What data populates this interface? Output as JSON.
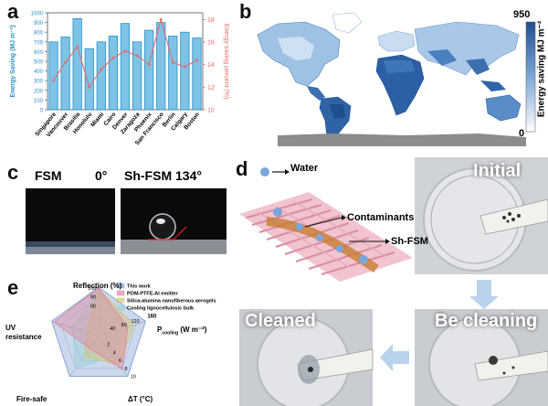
{
  "letters": {
    "a": "a",
    "b": "b",
    "c": "c",
    "d": "d",
    "e": "e"
  },
  "panel_a": {
    "chart_data": {
      "type": "bar",
      "categories": [
        "Singapore",
        "Vancouver",
        "Brasilia",
        "Honolulu",
        "Miami",
        "Cairo",
        "Denver",
        "Zaragoza",
        "Phoenix",
        "San Francisco",
        "Berlin",
        "Calgary",
        "Boston"
      ],
      "series": [
        {
          "values": [
            700,
            750,
            940,
            630,
            700,
            760,
            890,
            700,
            820,
            900,
            760,
            800,
            740
          ]
        },
        {
          "values": [
            12.6,
            14.2,
            15.6,
            12.0,
            13.6,
            14.6,
            15.2,
            14.8,
            14.0,
            18.0,
            14.2,
            13.8,
            14.4
          ]
        }
      ],
      "ylabel": "Energy Saving (MJ m⁻²)",
      "y2label": "Energy saving percent (%)",
      "ylim": [
        0,
        1000
      ],
      "y2lim": [
        10,
        18.6
      ],
      "yticks": [
        "0",
        "100",
        "200",
        "300",
        "400",
        "500",
        "600",
        "700",
        "800",
        "900",
        "1000"
      ],
      "y2ticks": [
        "10",
        "12",
        "14",
        "16",
        "18"
      ],
      "colors": {
        "bar": "#7ec3e6",
        "bar_edge": "#2a8fc4",
        "line": "#e86a6a",
        "left_axis": "#2a8fc4",
        "right_axis": "#e86a6a"
      }
    }
  },
  "panel_b": {
    "legend_max": "950",
    "legend_min": "0",
    "legend_label": "Energy saving MJ m⁻²",
    "colors": {
      "high": "#1e4f8f",
      "low": "#ffffff",
      "ocean": "#ffffff",
      "antarctica": "#8c8c8c"
    }
  },
  "panel_c": {
    "label_fsm": "FSM",
    "angle_fsm": "0°",
    "label_shfsm": "Sh-FSM 134°"
  },
  "panel_d": {
    "legend_water": "Water",
    "label_contaminants": "Contaminants",
    "label_shfsm": "Sh-FSM",
    "photo_initial": "Initial",
    "photo_be_cleaning": "Be cleaning",
    "photo_cleaned": "Cleaned"
  },
  "panel_e": {
    "chart_data": {
      "type": "radar",
      "axes": [
        "Reflection (%)",
        "P_cooling (W m⁻²)",
        "ΔT (°C)",
        "Fire-safe",
        "UV resistance"
      ],
      "axis_max_labels": [
        "100",
        "160",
        "10"
      ],
      "ring_labels_reflection": [
        "100",
        "90",
        "80"
      ],
      "ring_labels_power": [
        "120",
        "80",
        "40"
      ],
      "ring_labels_dt": [
        "10",
        "8",
        "6",
        "4",
        "2"
      ],
      "series": [
        {
          "name": "This work",
          "color": "#8aa6d8",
          "values": [
            1.0,
            1.0,
            1.0,
            1.0,
            1.0
          ]
        },
        {
          "name": "POM-PTFE-Al emitter",
          "color": "#e08aa0",
          "values": [
            0.98,
            0.62,
            0.82,
            0.3,
            0.95
          ]
        },
        {
          "name": "Silica-alumina nanofiberous aerogels",
          "color": "#d6c675",
          "values": [
            0.96,
            0.75,
            0.7,
            0.5,
            0.25
          ]
        },
        {
          "name": "Cooling lignocellulosic bulk",
          "color": "#9ed3d8",
          "values": [
            0.95,
            0.55,
            0.5,
            0.8,
            0.55
          ]
        }
      ]
    },
    "label_pcooling_main": "P",
    "label_pcooling_sub": "cooling",
    "label_pcooling_unit": " (W m⁻²)"
  }
}
